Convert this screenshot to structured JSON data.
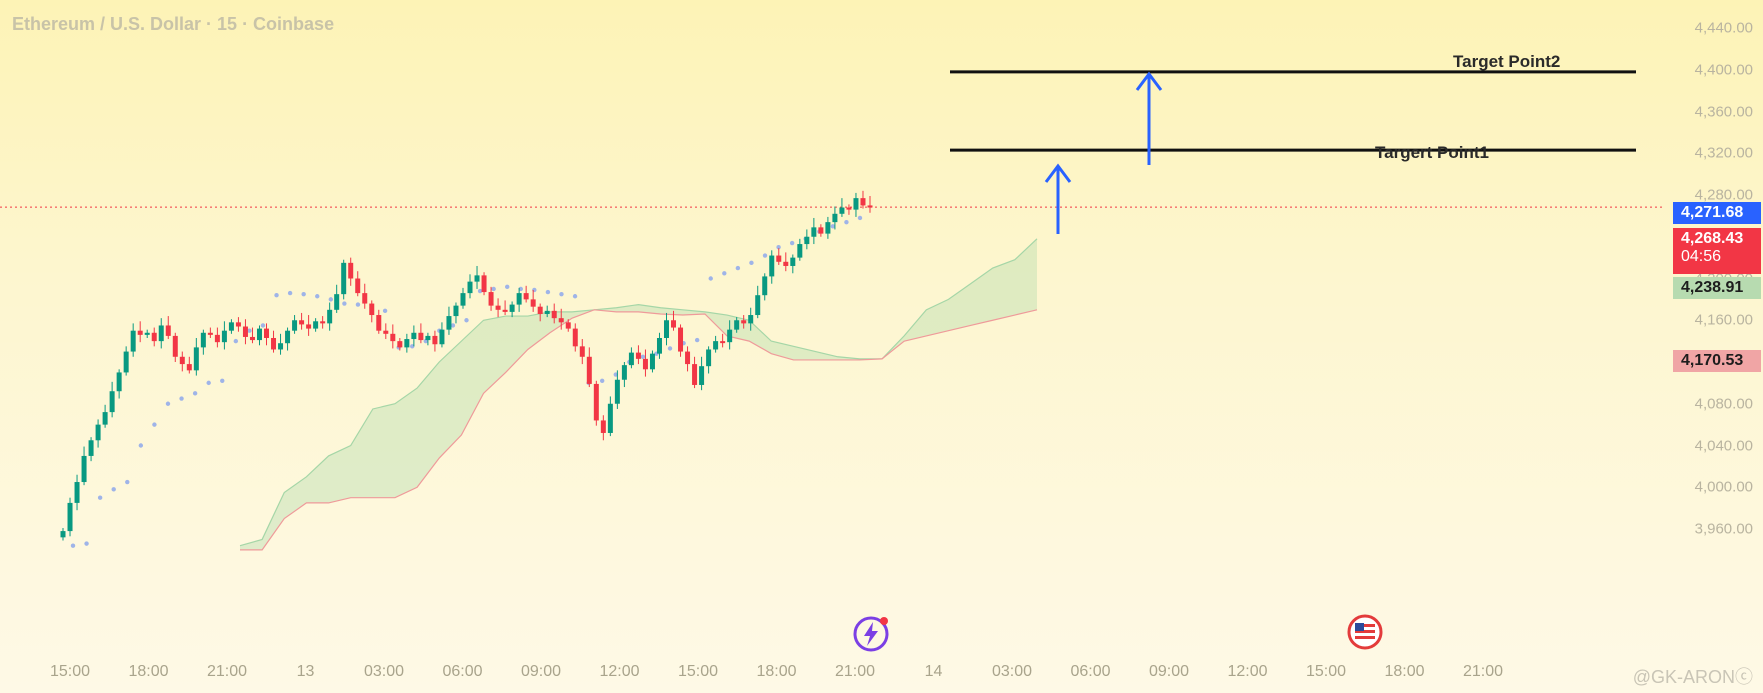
{
  "header": {
    "title": "Ethereum / U.S. Dollar · 15 · Coinbase"
  },
  "price_tags": {
    "last_high": {
      "value": "4,271.68",
      "color": "#2962ff"
    },
    "current": {
      "value": "4,268.43",
      "countdown": "04:56",
      "color": "#f23645"
    },
    "cloud_a": {
      "value": "4,238.91",
      "color": "#a5d6a7"
    },
    "cloud_b": {
      "value": "4,170.53",
      "color": "#ef9a9a"
    }
  },
  "annotations": {
    "target1": {
      "label": "Targert Point1",
      "price": 4323
    },
    "target2": {
      "label": "Target Point2",
      "price": 4398
    }
  },
  "watermark": "@GK-ARONⓒ",
  "icons": {
    "event_icon": "lightning-event-icon",
    "flag_icon": "us-flag-icon"
  },
  "chart_data": {
    "type": "candlestick",
    "title": "Ethereum / U.S. Dollar · 15 · Coinbase",
    "y_ticks": [
      "4,440.00",
      "4,400.00",
      "4,360.00",
      "4,320.00",
      "4,280.00",
      "4,240.00",
      "4,200.00",
      "4,160.00",
      "4,120.00",
      "4,080.00",
      "4,040.00",
      "4,000.00",
      "3,960.00"
    ],
    "x_ticks": [
      "15:00",
      "18:00",
      "21:00",
      "13",
      "03:00",
      "06:00",
      "09:00",
      "12:00",
      "15:00",
      "18:00",
      "21:00",
      "14",
      "03:00",
      "06:00",
      "09:00",
      "12:00",
      "15:00",
      "18:00",
      "21:00"
    ],
    "ylim": [
      3940,
      4460
    ],
    "up_color": "#089981",
    "down_color": "#f23645",
    "last_price": 4268.43,
    "targets": [
      4323,
      4398
    ],
    "close_series": [
      3958,
      3985,
      4005,
      4030,
      4045,
      4060,
      4072,
      4092,
      4110,
      4130,
      4150,
      4146,
      4148,
      4140,
      4155,
      4145,
      4125,
      4118,
      4112,
      4134,
      4148,
      4146,
      4139,
      4150,
      4158,
      4154,
      4144,
      4141,
      4152,
      4143,
      4132,
      4138,
      4150,
      4160,
      4156,
      4152,
      4159,
      4157,
      4170,
      4185,
      4215,
      4200,
      4186,
      4176,
      4165,
      4150,
      4147,
      4140,
      4134,
      4142,
      4148,
      4141,
      4145,
      4137,
      4151,
      4164,
      4174,
      4186,
      4197,
      4203,
      4187,
      4174,
      4170,
      4168,
      4175,
      4186,
      4180,
      4173,
      4166,
      4169,
      4162,
      4158,
      4152,
      4135,
      4125,
      4099,
      4064,
      4052,
      4080,
      4103,
      4117,
      4129,
      4123,
      4113,
      4128,
      4143,
      4160,
      4153,
      4130,
      4118,
      4098,
      4116,
      4132,
      4140,
      4139,
      4151,
      4160,
      4157,
      4165,
      4184,
      4202,
      4222,
      4216,
      4212,
      4220,
      4233,
      4240,
      4249,
      4243,
      4254,
      4262,
      4268,
      4266,
      4277,
      4270,
      4268
    ],
    "parabolic_sar": [
      3944,
      3946,
      3990,
      3998,
      4005,
      4040,
      4060,
      4080,
      4085,
      4090,
      4100,
      4102,
      4140,
      4150,
      4155,
      4184,
      4186,
      4185,
      4183,
      4180,
      4176,
      4175,
      4172,
      4169,
      4134,
      4135,
      4140,
      4150,
      4155,
      4160,
      4188,
      4190,
      4192,
      4190,
      4189,
      4187,
      4185,
      4183,
      4100,
      4102,
      4108,
      4120,
      4125,
      4128,
      4133,
      4138,
      4141,
      4200,
      4205,
      4210,
      4215,
      4222,
      4230,
      4234,
      4238,
      4245,
      4250,
      4254,
      4258
    ],
    "ichimoku_cloud": {
      "span_a": [
        3944,
        3950,
        3995,
        4010,
        4030,
        4040,
        4075,
        4080,
        4095,
        4120,
        4140,
        4160,
        4164,
        4164,
        4168,
        4168,
        4170,
        4172,
        4175,
        4172,
        4170,
        4168,
        4165,
        4160,
        4140,
        4135,
        4130,
        4125,
        4123,
        4123,
        4145,
        4170,
        4180,
        4195,
        4210,
        4218,
        4238
      ],
      "span_b": [
        3940,
        3940,
        3970,
        3985,
        3985,
        3990,
        3990,
        3990,
        4000,
        4028,
        4050,
        4090,
        4110,
        4132,
        4148,
        4162,
        4170,
        4168,
        4168,
        4166,
        4165,
        4166,
        4145,
        4140,
        4128,
        4122,
        4122,
        4122,
        4122,
        4123,
        4140,
        4145,
        4150,
        4155,
        4160,
        4165,
        4170
      ]
    }
  }
}
